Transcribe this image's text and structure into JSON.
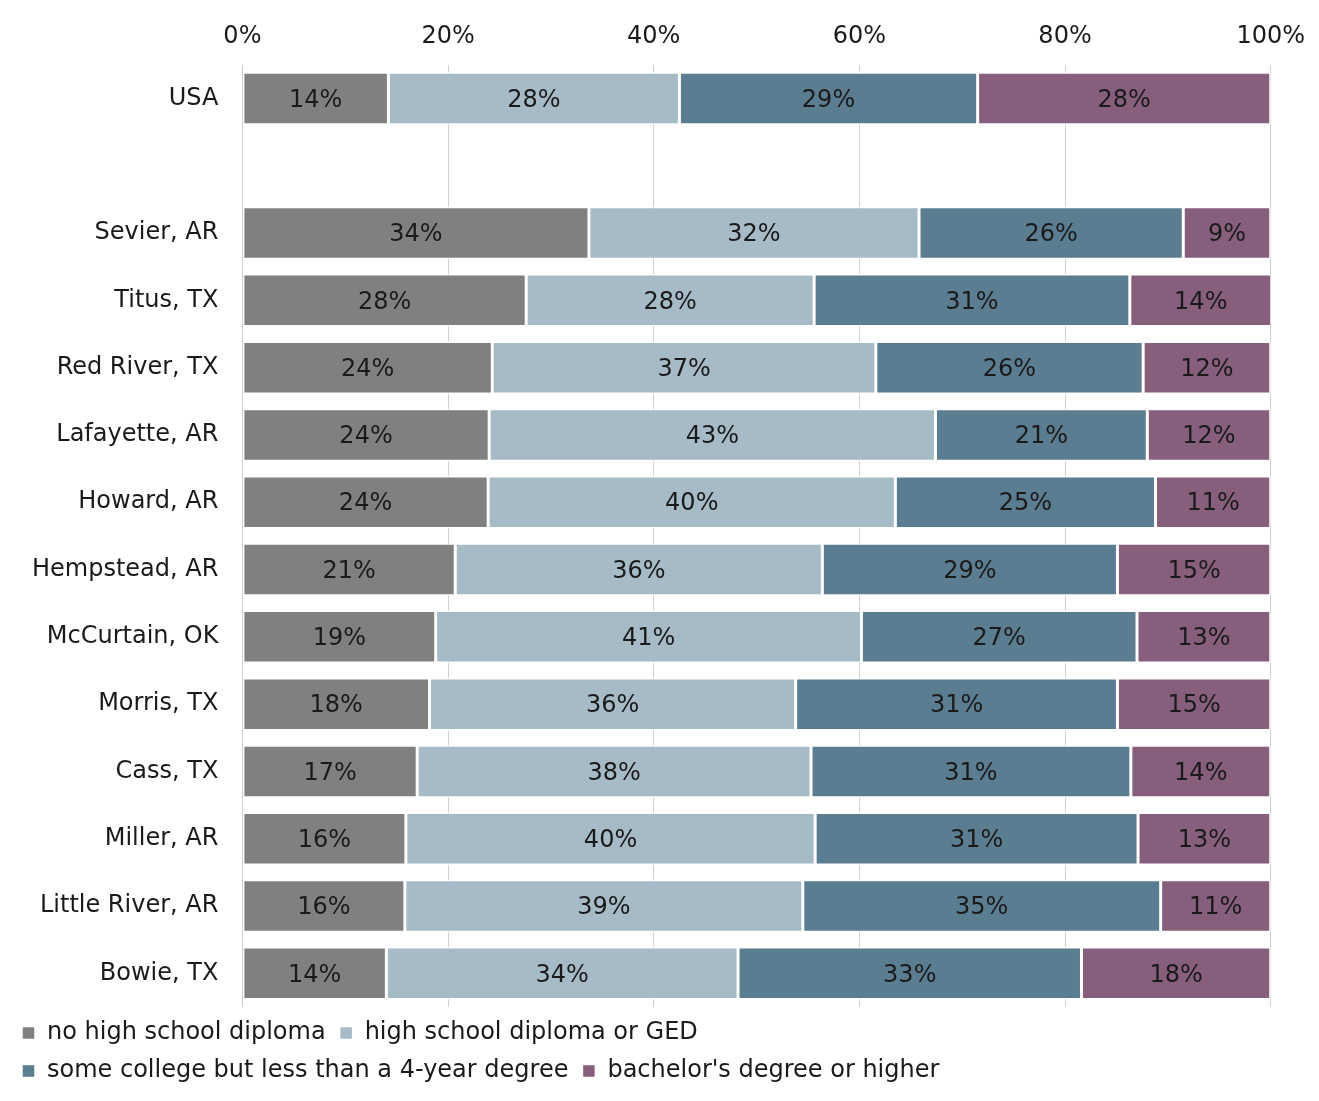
{
  "chart_data": {
    "type": "bar",
    "orientation": "horizontal",
    "stacked": true,
    "categories": [
      "USA",
      null,
      "Sevier, AR",
      "Titus, TX",
      "Red River, TX",
      "Lafayette, AR",
      "Howard, AR",
      "Hempstead, AR",
      "McCurtain, OK",
      "Morris, TX",
      "Cass, TX",
      "Miller, AR",
      "Little River, AR",
      "Bowie, TX"
    ],
    "xlim": [
      0,
      100
    ],
    "xticks": [
      {
        "value": 0,
        "label": "0%"
      },
      {
        "value": 20,
        "label": "20%"
      },
      {
        "value": 40,
        "label": "40%"
      },
      {
        "value": 60,
        "label": "60%"
      },
      {
        "value": 80,
        "label": "80%"
      },
      {
        "value": 100,
        "label": "100%"
      }
    ],
    "grid": "x",
    "legend": "bottom",
    "series": [
      {
        "name": "no high school diploma",
        "color": "#808080",
        "values": [
          14.2,
          null,
          33.7,
          27.6,
          24.3,
          24.0,
          23.9,
          20.7,
          18.8,
          18.2,
          17.0,
          15.9,
          15.8,
          14.0
        ],
        "value_labels": [
          "14%",
          null,
          "34%",
          "28%",
          "24%",
          "24%",
          "24%",
          "21%",
          "19%",
          "18%",
          "17%",
          "16%",
          "16%",
          "14%"
        ]
      },
      {
        "name": "high school diploma or GED",
        "color": "#a7bbc6",
        "values": [
          28.3,
          null,
          32.1,
          28.0,
          37.3,
          43.4,
          39.6,
          35.7,
          41.4,
          35.6,
          38.3,
          39.8,
          38.7,
          34.2
        ],
        "value_labels": [
          "28%",
          null,
          "32%",
          "28%",
          "37%",
          "43%",
          "40%",
          "36%",
          "41%",
          "36%",
          "38%",
          "40%",
          "39%",
          "34%"
        ]
      },
      {
        "name": "some college but less than a 4-year degree",
        "color": "#5b7d91",
        "values": [
          29.0,
          null,
          25.7,
          30.7,
          26.0,
          20.6,
          25.3,
          28.7,
          26.8,
          31.3,
          31.1,
          31.4,
          34.8,
          33.4
        ],
        "value_labels": [
          "29%",
          null,
          "26%",
          "31%",
          "26%",
          "21%",
          "25%",
          "29%",
          "27%",
          "31%",
          "31%",
          "31%",
          "35%",
          "33%"
        ]
      },
      {
        "name": "bachelor's degree or higher",
        "color": "#875e7c",
        "values": [
          28.5,
          null,
          8.5,
          13.8,
          12.4,
          12.0,
          11.2,
          14.9,
          13.0,
          14.9,
          13.6,
          12.9,
          10.7,
          18.4
        ],
        "value_labels": [
          "28%",
          null,
          "9%",
          "14%",
          "12%",
          "12%",
          "11%",
          "15%",
          "13%",
          "15%",
          "14%",
          "13%",
          "11%",
          "18%"
        ]
      }
    ]
  }
}
